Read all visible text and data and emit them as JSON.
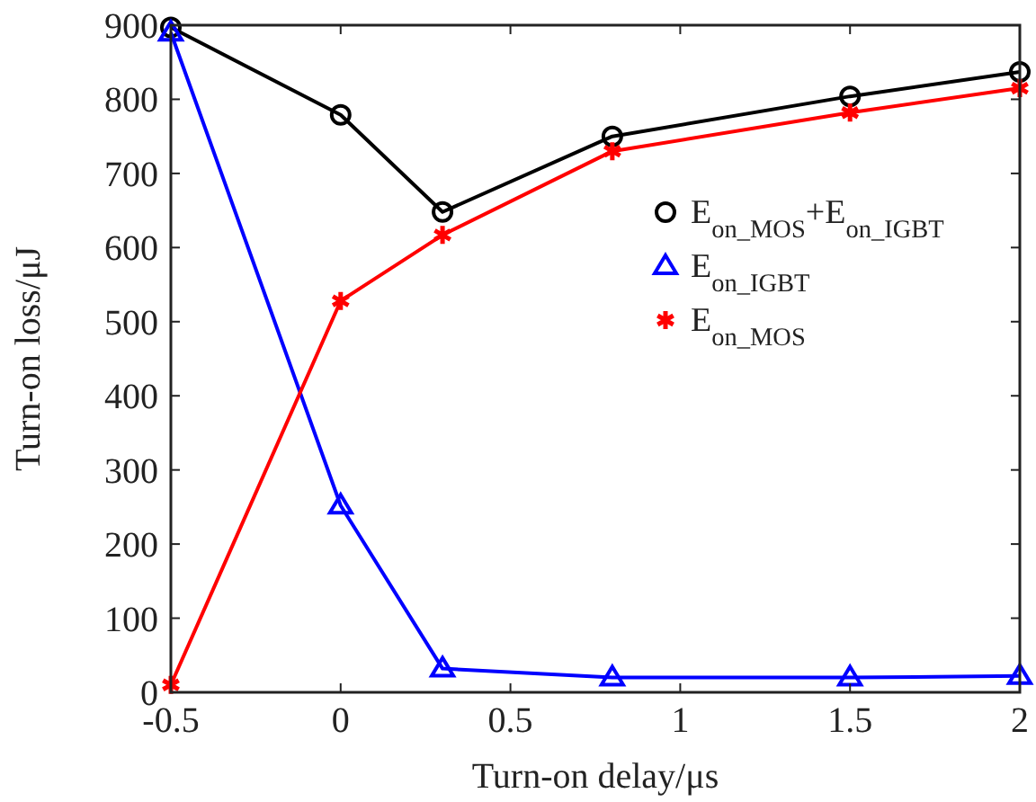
{
  "chart_data": {
    "type": "line",
    "xlabel": "Turn-on delay/μs",
    "ylabel": "Turn-on loss/μJ",
    "x": [
      -0.5,
      0,
      0.3,
      0.8,
      1.5,
      2
    ],
    "xlim": [
      -0.5,
      2
    ],
    "xticks": [
      {
        "value": -0.5,
        "label": "-0.5"
      },
      0,
      0.5,
      1,
      1.5,
      2
    ],
    "ylim": [
      0,
      900
    ],
    "yticks": [
      0,
      100,
      200,
      300,
      400,
      500,
      600,
      700,
      800,
      900
    ],
    "grid": false,
    "legend": "top right",
    "series": [
      {
        "name": "E$_{on_MOS}$+E$_{on_IGBT}$",
        "color": "#000000",
        "marker": "circle",
        "values": [
          897,
          779,
          648,
          750,
          804,
          837
        ]
      },
      {
        "name": "E$_{on_IGBT}$",
        "color": "#0000ff",
        "marker": "triangle",
        "values": [
          890,
          252,
          32,
          20,
          20,
          22
        ]
      },
      {
        "name": "E$_{on_MOS}$",
        "color": "#ff0000",
        "marker": "cross",
        "values": [
          10,
          528,
          617,
          730,
          782,
          815
        ]
      }
    ]
  }
}
